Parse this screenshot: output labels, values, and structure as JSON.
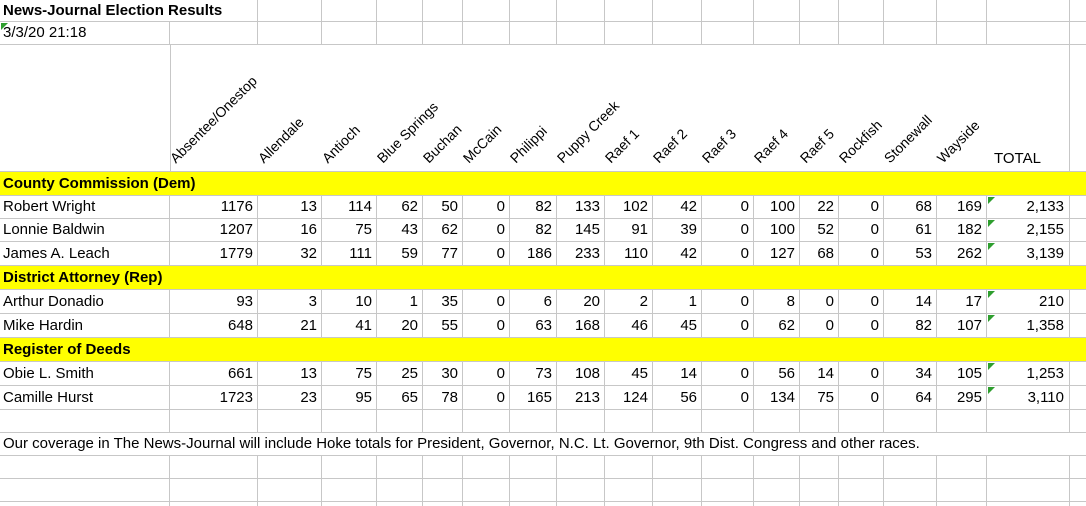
{
  "title": "News-Journal Election Results",
  "timestamp": "3/3/20 21:18",
  "total_label": "TOTAL",
  "columns": [
    "Absentee/Onestop",
    "Allendale",
    "Antioch",
    "Blue Springs",
    "Buchan",
    "McCain",
    "Philippi",
    "Puppy Creek",
    "Raef 1",
    "Raef 2",
    "Raef 3",
    "Raef 4",
    "Raef 5",
    "Rockfish",
    "Stonewall",
    "Wayside"
  ],
  "sections": [
    {
      "header": "County Commission (Dem)",
      "rows": [
        {
          "name": "Robert Wright",
          "values": [
            1176,
            13,
            114,
            62,
            50,
            0,
            82,
            133,
            102,
            42,
            0,
            100,
            22,
            0,
            68,
            169
          ],
          "total": "2,133"
        },
        {
          "name": "Lonnie Baldwin",
          "values": [
            1207,
            16,
            75,
            43,
            62,
            0,
            82,
            145,
            91,
            39,
            0,
            100,
            52,
            0,
            61,
            182
          ],
          "total": "2,155"
        },
        {
          "name": "James A. Leach",
          "values": [
            1779,
            32,
            111,
            59,
            77,
            0,
            186,
            233,
            110,
            42,
            0,
            127,
            68,
            0,
            53,
            262
          ],
          "total": "3,139"
        }
      ]
    },
    {
      "header": "District Attorney (Rep)",
      "rows": [
        {
          "name": "Arthur Donadio",
          "values": [
            93,
            3,
            10,
            1,
            35,
            0,
            6,
            20,
            2,
            1,
            0,
            8,
            0,
            0,
            14,
            17
          ],
          "total": "210"
        },
        {
          "name": "Mike Hardin",
          "values": [
            648,
            21,
            41,
            20,
            55,
            0,
            63,
            168,
            46,
            45,
            0,
            62,
            0,
            0,
            82,
            107
          ],
          "total": "1,358"
        }
      ]
    },
    {
      "header": "Register of Deeds",
      "rows": [
        {
          "name": "Obie L. Smith",
          "values": [
            661,
            13,
            75,
            25,
            30,
            0,
            73,
            108,
            45,
            14,
            0,
            56,
            14,
            0,
            34,
            105
          ],
          "total": "1,253"
        },
        {
          "name": "Camille Hurst",
          "values": [
            1723,
            23,
            95,
            65,
            78,
            0,
            165,
            213,
            124,
            56,
            0,
            134,
            75,
            0,
            64,
            295
          ],
          "total": "3,110"
        }
      ]
    }
  ],
  "footer_note": "Our coverage in The News-Journal will include Hoke totals for President, Governor, N.C. Lt. Governor, 9th Dist. Congress and other races.",
  "colors": {
    "highlight": "#FFFF00",
    "gridline": "#C7C7C7",
    "flag_green": "#2E9E2E",
    "text": "#000000"
  }
}
